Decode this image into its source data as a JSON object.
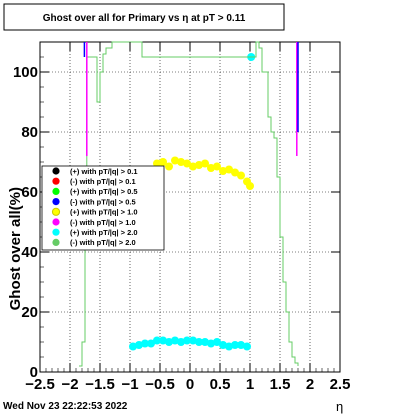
{
  "chart_data": {
    "type": "scatter",
    "title": "Ghost over all for Primary vs   η at pT > 0.11",
    "ylabel": "Ghost over all(%)",
    "xlabel": "η",
    "xlim": [
      -2.5,
      2.5
    ],
    "ylim": [
      0,
      110
    ],
    "x_ticks": [
      "−2.5",
      "−2",
      "−1.5",
      "−1",
      "−0.5",
      "0",
      "0.5",
      "1",
      "1.5",
      "2",
      "2.5"
    ],
    "y_ticks": [
      "0",
      "20",
      "40",
      "60",
      "80",
      "100"
    ],
    "grid": true,
    "legend_position": "left",
    "legend": [
      {
        "label": "(+) with pT/|q| > 0.1",
        "color": "#000000"
      },
      {
        "label": "(-) with pT/|q| > 0.1",
        "color": "#ff0000"
      },
      {
        "label": "(+) with pT/|q| > 0.5",
        "color": "#00ff00"
      },
      {
        "label": "(-) with pT/|q| > 0.5",
        "color": "#0000ff"
      },
      {
        "label": "(+) with pT/|q| > 1.0",
        "color": "#ffff00"
      },
      {
        "label": "(-) with pT/|q| > 1.0",
        "color": "#ff00ff"
      },
      {
        "label": "(+) with pT/|q| > 2.0",
        "color": "#00ffff"
      },
      {
        "label": "(-) with pT/|q| > 2.0",
        "color": "#66cc66"
      }
    ],
    "series": [
      {
        "color": "#ffff00",
        "points": [
          [
            -0.55,
            69.5
          ],
          [
            -0.45,
            70
          ],
          [
            -0.35,
            68.5
          ],
          [
            -0.25,
            70.5
          ],
          [
            -0.15,
            70
          ],
          [
            -0.05,
            69.5
          ],
          [
            0.05,
            68.5
          ],
          [
            0.15,
            69
          ],
          [
            0.25,
            69.5
          ],
          [
            0.35,
            68
          ],
          [
            0.45,
            68.5
          ],
          [
            0.55,
            67
          ],
          [
            0.65,
            67.5
          ],
          [
            0.75,
            66.5
          ],
          [
            0.85,
            65.5
          ],
          [
            0.95,
            63.5
          ],
          [
            1.0,
            62
          ]
        ]
      },
      {
        "color": "#00ffff",
        "points": [
          [
            -0.95,
            8.5
          ],
          [
            -0.85,
            9
          ],
          [
            -0.75,
            9.5
          ],
          [
            -0.65,
            9.5
          ],
          [
            -0.55,
            10.5
          ],
          [
            -0.45,
            10.5
          ],
          [
            -0.35,
            10
          ],
          [
            -0.25,
            10.5
          ],
          [
            -0.15,
            10
          ],
          [
            -0.05,
            10.5
          ],
          [
            0.05,
            10.5
          ],
          [
            0.15,
            10
          ],
          [
            0.25,
            10
          ],
          [
            0.35,
            9.5
          ],
          [
            0.45,
            10
          ],
          [
            0.55,
            9
          ],
          [
            0.65,
            8.5
          ],
          [
            0.75,
            9
          ],
          [
            0.85,
            9
          ],
          [
            0.95,
            8.5
          ],
          [
            1.02,
            105
          ]
        ]
      },
      {
        "color": "#66cc66",
        "step": [
          [
            -1.85,
            2
          ],
          [
            -1.8,
            10
          ],
          [
            -1.75,
            45
          ],
          [
            -1.72,
            105
          ],
          [
            -1.6,
            105
          ],
          [
            -1.55,
            90
          ],
          [
            -1.5,
            100
          ],
          [
            -1.45,
            106
          ],
          [
            -1.4,
            108
          ],
          [
            -1.3,
            110
          ],
          [
            -1.0,
            110
          ],
          [
            -0.8,
            105
          ],
          [
            1.0,
            105
          ],
          [
            1.1,
            110
          ],
          [
            1.15,
            108
          ],
          [
            1.2,
            100
          ],
          [
            1.3,
            85
          ],
          [
            1.35,
            80
          ],
          [
            1.4,
            78
          ],
          [
            1.45,
            65
          ],
          [
            1.5,
            45
          ],
          [
            1.55,
            30
          ],
          [
            1.6,
            20
          ],
          [
            1.65,
            10
          ],
          [
            1.7,
            5
          ],
          [
            1.75,
            3
          ],
          [
            1.8,
            2
          ]
        ]
      },
      {
        "color": "#ff00ff",
        "lines": [
          [
            [
              -1.72,
              110
            ],
            [
              -1.72,
              72
            ]
          ],
          [
            [
              1.78,
              110
            ],
            [
              1.78,
              72
            ]
          ]
        ]
      },
      {
        "color": "#0000ff",
        "lines": [
          [
            [
              -1.76,
              110
            ],
            [
              -1.76,
              105
            ]
          ],
          [
            [
              1.8,
              110
            ],
            [
              1.8,
              80
            ]
          ]
        ]
      }
    ]
  },
  "footer": {
    "timestamp": "Wed Nov 23 22:22:53 2022"
  }
}
